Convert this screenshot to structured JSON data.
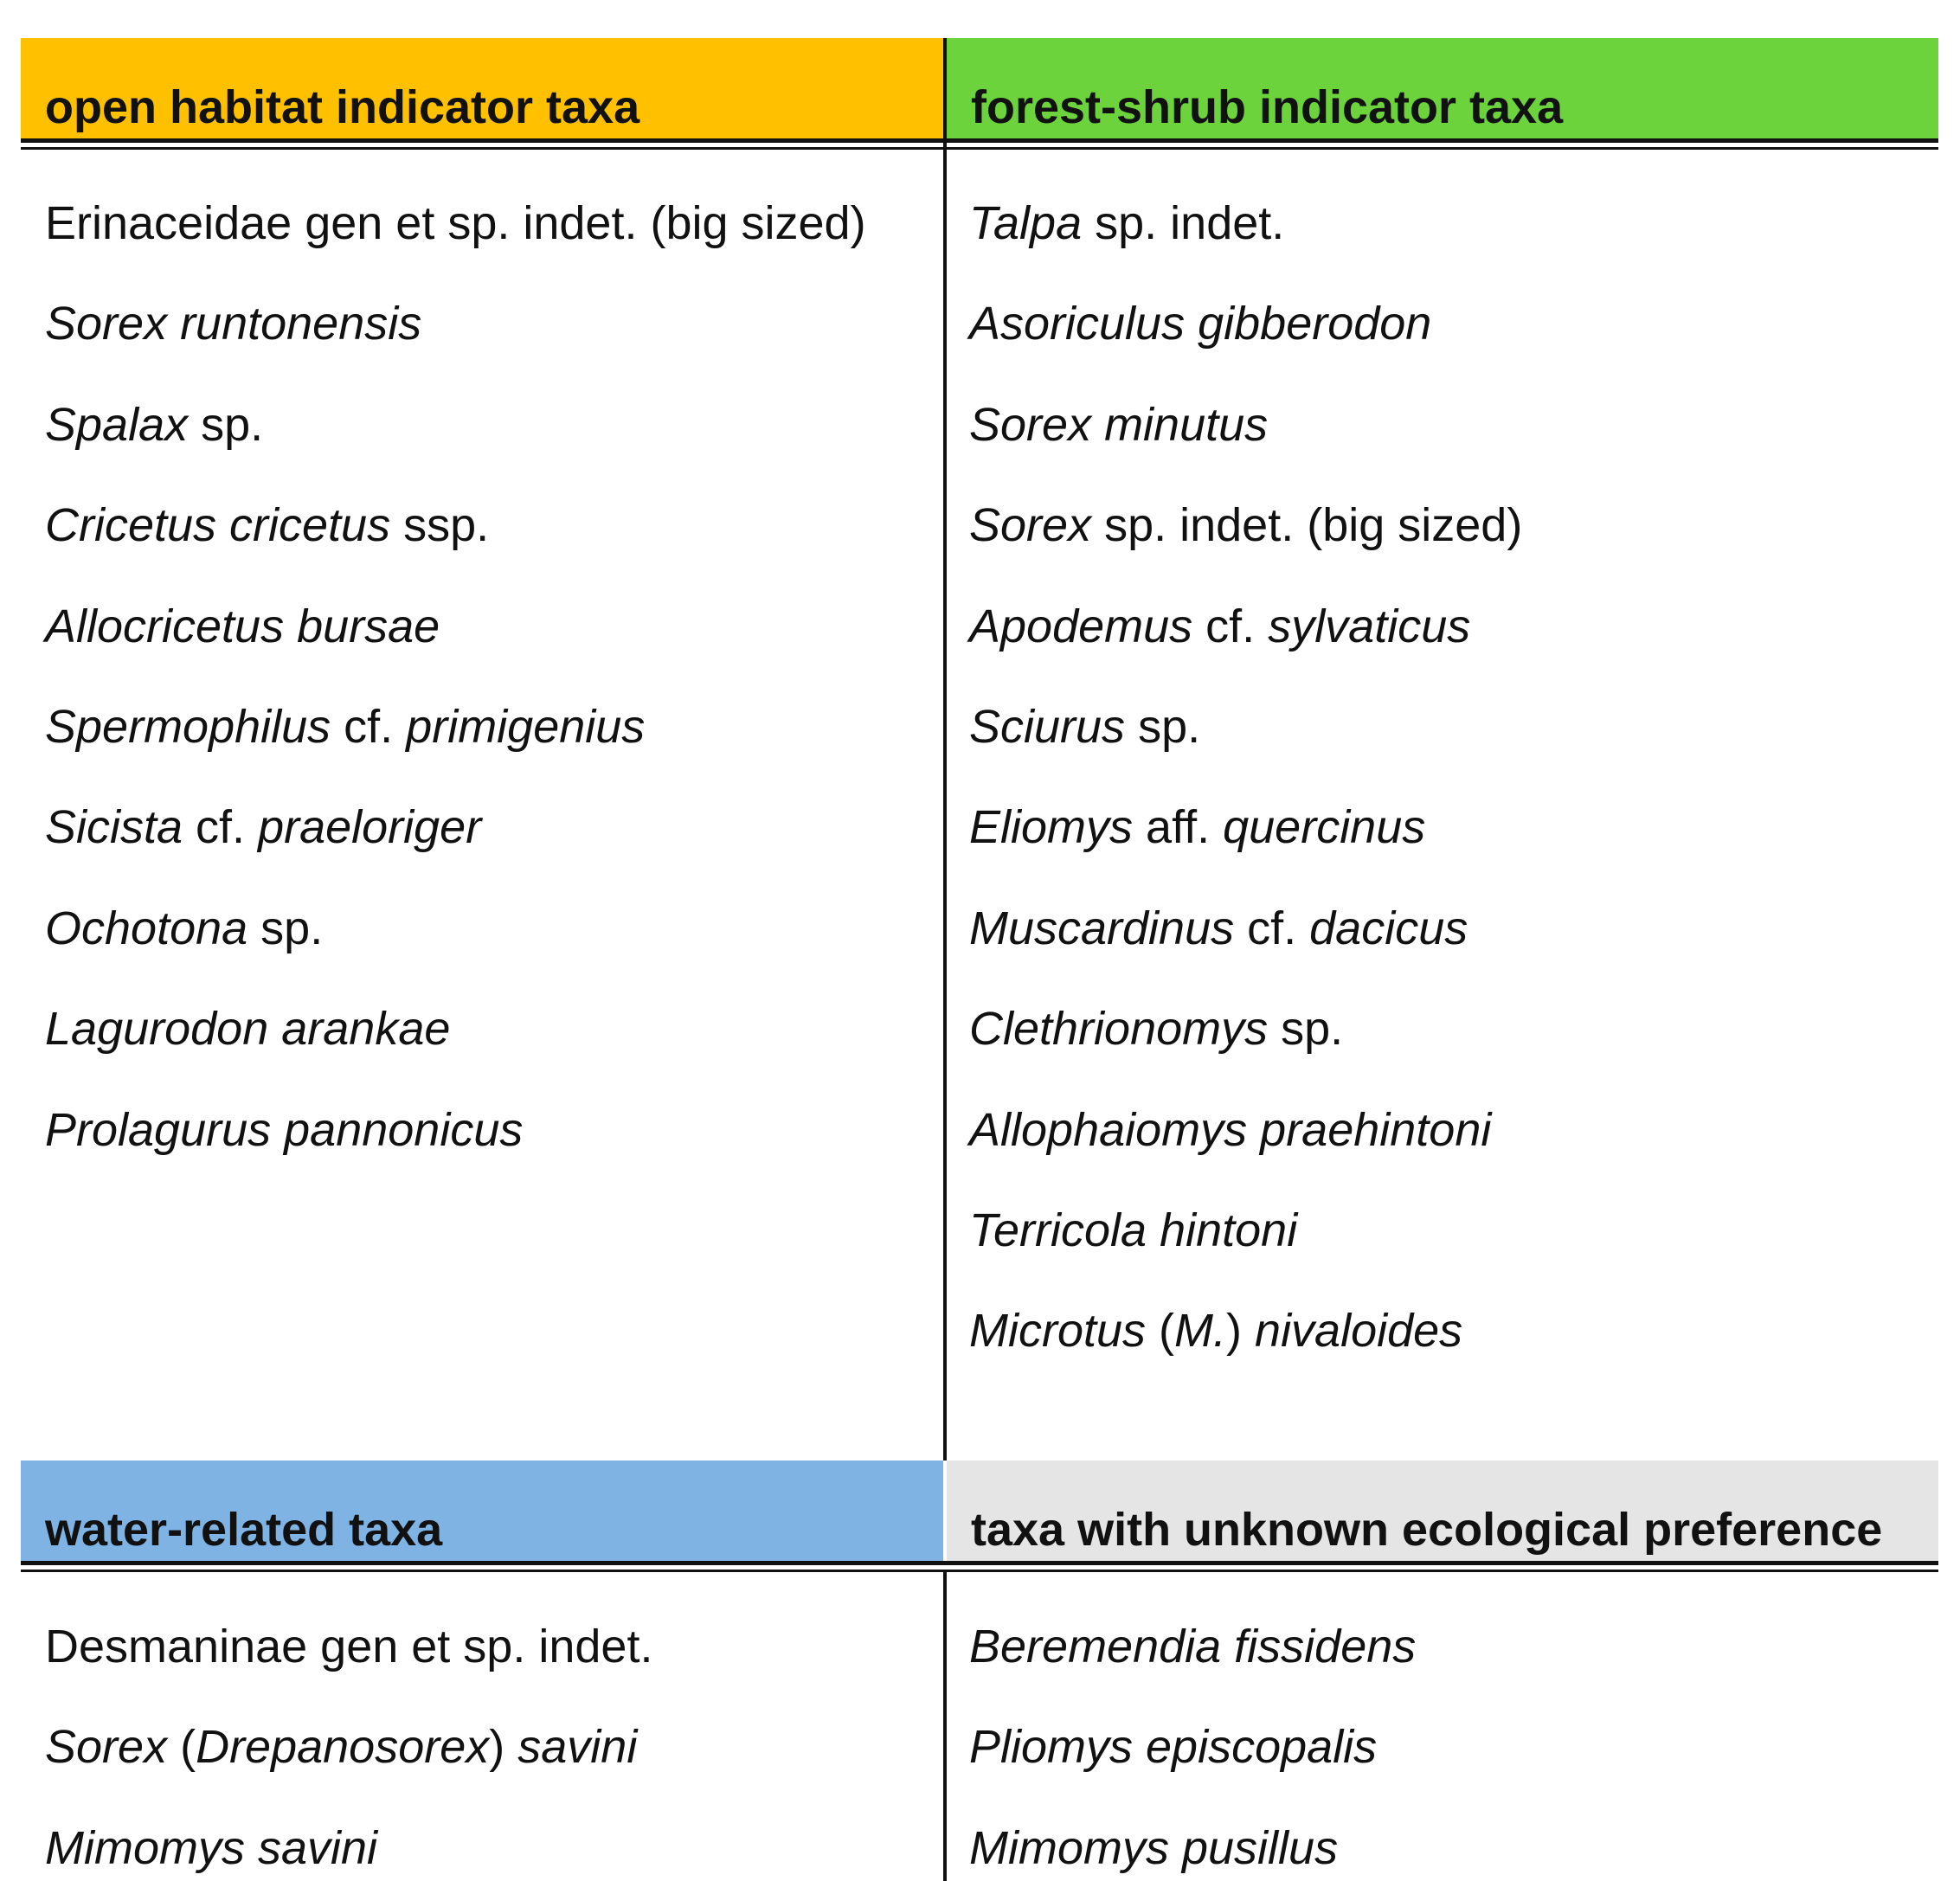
{
  "colors": {
    "open_habitat": "#FFC000",
    "forest_shrub": "#6DD33C",
    "water_related": "#7EB3E3",
    "unknown": "#E5E5E5"
  },
  "headers": {
    "open_habitat": "open habitat indicator taxa",
    "forest_shrub": "forest-shrub indicator taxa",
    "water_related": "water-related taxa",
    "unknown": "taxa with unknown ecological preference"
  },
  "open_habitat": [
    [
      {
        "t": "Erinaceidae gen et sp. indet. (big sized)",
        "i": false
      }
    ],
    [
      {
        "t": "Sorex runtonensis",
        "i": true
      }
    ],
    [
      {
        "t": "Spalax",
        "i": true
      },
      {
        "t": " sp.",
        "i": false
      }
    ],
    [
      {
        "t": "Cricetus cricetus",
        "i": true
      },
      {
        "t": " ssp.",
        "i": false
      }
    ],
    [
      {
        "t": "Allocricetus bursae",
        "i": true
      }
    ],
    [
      {
        "t": "Spermophilus",
        "i": true
      },
      {
        "t": " cf. ",
        "i": false
      },
      {
        "t": "primigenius",
        "i": true
      }
    ],
    [
      {
        "t": "Sicista",
        "i": true
      },
      {
        "t": " cf. ",
        "i": false
      },
      {
        "t": "praeloriger",
        "i": true
      }
    ],
    [
      {
        "t": "Ochotona",
        "i": true
      },
      {
        "t": " sp.",
        "i": false
      }
    ],
    [
      {
        "t": "Lagurodon arankae",
        "i": true
      }
    ],
    [
      {
        "t": "Prolagurus pannonicus",
        "i": true
      }
    ]
  ],
  "forest_shrub": [
    [
      {
        "t": "Talpa",
        "i": true
      },
      {
        "t": " sp. indet.",
        "i": false
      }
    ],
    [
      {
        "t": "Asoriculus gibberodon",
        "i": true
      }
    ],
    [
      {
        "t": "Sorex minutus",
        "i": true
      }
    ],
    [
      {
        "t": "Sorex",
        "i": true
      },
      {
        "t": " sp. indet. (big sized)",
        "i": false
      }
    ],
    [
      {
        "t": "Apodemus",
        "i": true
      },
      {
        "t": " cf. ",
        "i": false
      },
      {
        "t": "sylvaticus",
        "i": true
      }
    ],
    [
      {
        "t": "Sciurus",
        "i": true
      },
      {
        "t": " sp.",
        "i": false
      }
    ],
    [
      {
        "t": "Eliomys",
        "i": true
      },
      {
        "t": " aff. ",
        "i": false
      },
      {
        "t": "quercinus",
        "i": true
      }
    ],
    [
      {
        "t": "Muscardinus",
        "i": true
      },
      {
        "t": " cf. ",
        "i": false
      },
      {
        "t": "dacicus",
        "i": true
      }
    ],
    [
      {
        "t": "Clethrionomys",
        "i": true
      },
      {
        "t": " sp.",
        "i": false
      }
    ],
    [
      {
        "t": "Allophaiomys praehintoni",
        "i": true
      }
    ],
    [
      {
        "t": "Terricola hintoni",
        "i": true
      }
    ],
    [
      {
        "t": "Microtus",
        "i": true
      },
      {
        "t": " (",
        "i": false
      },
      {
        "t": "M.",
        "i": true
      },
      {
        "t": ") ",
        "i": false
      },
      {
        "t": "nivaloides",
        "i": true
      }
    ]
  ],
  "water_related": [
    [
      {
        "t": "Desmaninae gen et sp. indet.",
        "i": false
      }
    ],
    [
      {
        "t": "Sorex",
        "i": true
      },
      {
        "t": " (",
        "i": false
      },
      {
        "t": "Drepanosorex",
        "i": true
      },
      {
        "t": ") ",
        "i": false
      },
      {
        "t": "savini",
        "i": true
      }
    ],
    [
      {
        "t": "Mimomys savini",
        "i": true
      }
    ]
  ],
  "unknown": [
    [
      {
        "t": "Beremendia fissidens",
        "i": true
      }
    ],
    [
      {
        "t": "Pliomys episcopalis",
        "i": true
      }
    ],
    [
      {
        "t": "Mimomys pusillus",
        "i": true
      }
    ]
  ]
}
